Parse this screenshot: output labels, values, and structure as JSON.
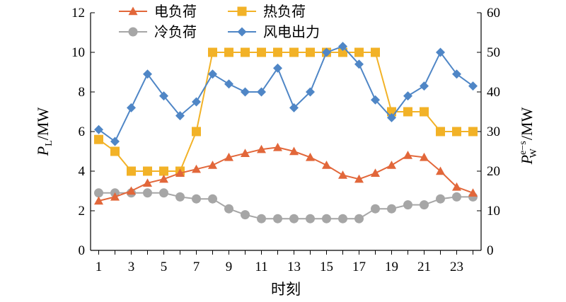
{
  "chart_data": {
    "type": "line",
    "x": [
      1,
      2,
      3,
      4,
      5,
      6,
      7,
      8,
      9,
      10,
      11,
      12,
      13,
      14,
      15,
      16,
      17,
      18,
      19,
      20,
      21,
      22,
      23,
      24
    ],
    "x_tick_labels": [
      "1",
      "3",
      "5",
      "7",
      "9",
      "11",
      "13",
      "15",
      "17",
      "19",
      "21",
      "23"
    ],
    "xlabel": "时刻",
    "ylabel_left": {
      "main": "P",
      "sub": "L",
      "unit": "/MW"
    },
    "ylabel_right": {
      "main": "P",
      "sup": "e−s",
      "sub": "W",
      "unit": "/MW"
    },
    "ylim_left": [
      0,
      12
    ],
    "ylim_right": [
      0,
      60
    ],
    "left_ticks": [
      "0",
      "2",
      "4",
      "6",
      "8",
      "10",
      "12"
    ],
    "right_ticks": [
      "0",
      "10",
      "20",
      "30",
      "40",
      "50",
      "60"
    ],
    "grid": false,
    "legend_position": "top",
    "series": [
      {
        "name": "电负荷",
        "axis": "left",
        "color": "#E2673A",
        "marker": "triangle",
        "values": [
          2.5,
          2.7,
          3.0,
          3.4,
          3.6,
          3.9,
          4.1,
          4.3,
          4.7,
          4.9,
          5.1,
          5.2,
          5.0,
          4.7,
          4.3,
          3.8,
          3.6,
          3.9,
          4.3,
          4.8,
          4.7,
          4.0,
          3.2,
          2.9
        ]
      },
      {
        "name": "热负荷",
        "axis": "left",
        "color": "#F2B227",
        "marker": "square",
        "values": [
          5.6,
          5.0,
          4.0,
          4.0,
          4.0,
          4.0,
          6.0,
          10.0,
          10.0,
          10.0,
          10.0,
          10.0,
          10.0,
          10.0,
          10.0,
          10.0,
          10.0,
          10.0,
          7.0,
          7.0,
          7.0,
          6.0,
          6.0,
          6.0
        ]
      },
      {
        "name": "冷负荷",
        "axis": "left",
        "color": "#A6A6A6",
        "marker": "circle",
        "values": [
          2.9,
          2.9,
          2.9,
          2.9,
          2.9,
          2.7,
          2.6,
          2.6,
          2.1,
          1.8,
          1.6,
          1.6,
          1.6,
          1.6,
          1.6,
          1.6,
          1.6,
          2.1,
          2.1,
          2.3,
          2.3,
          2.6,
          2.7,
          2.7
        ]
      },
      {
        "name": "风电出力",
        "axis": "right",
        "color": "#4F86C6",
        "marker": "diamond",
        "values": [
          30.5,
          27.5,
          36,
          44.5,
          39,
          34,
          37.5,
          44.5,
          42,
          40,
          40,
          46,
          36,
          40,
          50,
          51.5,
          47,
          38,
          33.5,
          39,
          41.5,
          50,
          44.5,
          41.5
        ]
      }
    ]
  }
}
